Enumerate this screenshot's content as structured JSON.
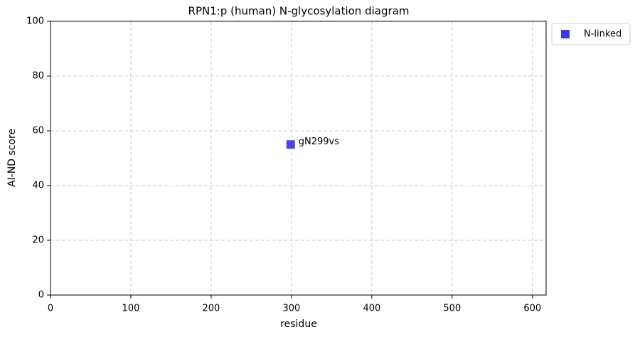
{
  "chart_data": {
    "type": "scatter",
    "title": "RPN1:p (human) N-glycosylation diagram",
    "xlabel": "residue",
    "ylabel": "AI-ND score",
    "series": [
      {
        "name": "N-linked",
        "color": "#3b3be6",
        "x": [
          299
        ],
        "values": [
          55
        ],
        "point_labels": [
          "gN299vs"
        ]
      }
    ],
    "xlim": [
      0,
      617
    ],
    "xticks": [
      0,
      100,
      200,
      300,
      400,
      500,
      600
    ],
    "ylim": [
      0,
      100
    ],
    "yticks": [
      0,
      20,
      40,
      60,
      80,
      100
    ],
    "grid": true,
    "legend": "outside upper right"
  }
}
